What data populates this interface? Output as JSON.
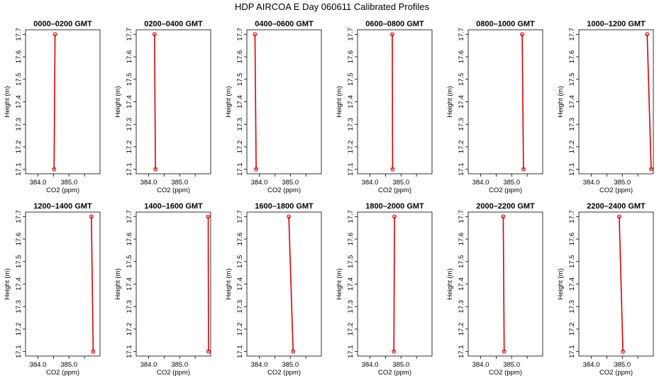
{
  "figure": {
    "title": "HDP  AIRCOA E  Day 060611  Calibrated Profiles",
    "line_color": "#dd0000",
    "point_color": "#dd0000",
    "axis_color": "#000000"
  },
  "chart_data": [
    {
      "type": "line",
      "title": "0000–0200 GMT",
      "xlabel": "CO2 (ppm)",
      "ylabel": "Height (m)",
      "xlim": [
        383.6,
        386.0
      ],
      "ylim": [
        17.08,
        17.72
      ],
      "xticks": [
        "384.0",
        "385.0"
      ],
      "yticks": [
        "17.1",
        "17.2",
        "17.3",
        "17.4",
        "17.5",
        "17.6",
        "17.7"
      ],
      "series": [
        {
          "x": [
            384.52,
            384.55
          ],
          "y": [
            17.1,
            17.7
          ]
        }
      ]
    },
    {
      "type": "line",
      "title": "0200–0400 GMT",
      "xlabel": "CO2 (ppm)",
      "ylabel": "Height (m)",
      "xlim": [
        383.6,
        386.0
      ],
      "ylim": [
        17.08,
        17.72
      ],
      "xticks": [
        "384.0",
        "385.0"
      ],
      "yticks": [
        "17.1",
        "17.2",
        "17.3",
        "17.4",
        "17.5",
        "17.6",
        "17.7"
      ],
      "series": [
        {
          "x": [
            384.22,
            384.19
          ],
          "y": [
            17.1,
            17.7
          ]
        }
      ]
    },
    {
      "type": "line",
      "title": "0400–0600 GMT",
      "xlabel": "CO2 (ppm)",
      "ylabel": "Height (m)",
      "xlim": [
        383.6,
        386.0
      ],
      "ylim": [
        17.08,
        17.72
      ],
      "xticks": [
        "384.0",
        "385.0"
      ],
      "yticks": [
        "17.1",
        "17.2",
        "17.3",
        "17.4",
        "17.5",
        "17.6",
        "17.7"
      ],
      "series": [
        {
          "x": [
            383.9,
            383.86
          ],
          "y": [
            17.1,
            17.7
          ]
        }
      ]
    },
    {
      "type": "line",
      "title": "0600–0800 GMT",
      "xlabel": "CO2 (ppm)",
      "ylabel": "Height (m)",
      "xlim": [
        383.6,
        386.0
      ],
      "ylim": [
        17.08,
        17.72
      ],
      "xticks": [
        "384.0",
        "385.0"
      ],
      "yticks": [
        "17.1",
        "17.2",
        "17.3",
        "17.4",
        "17.5",
        "17.6",
        "17.7"
      ],
      "series": [
        {
          "x": [
            384.73,
            384.72
          ],
          "y": [
            17.1,
            17.7
          ]
        }
      ]
    },
    {
      "type": "line",
      "title": "0800–1000 GMT",
      "xlabel": "CO2 (ppm)",
      "ylabel": "Height (m)",
      "xlim": [
        383.6,
        386.0
      ],
      "ylim": [
        17.08,
        17.72
      ],
      "xticks": [
        "384.0",
        "385.0"
      ],
      "yticks": [
        "17.1",
        "17.2",
        "17.3",
        "17.4",
        "17.5",
        "17.6",
        "17.7"
      ],
      "series": [
        {
          "x": [
            385.38,
            385.34
          ],
          "y": [
            17.1,
            17.7
          ]
        }
      ]
    },
    {
      "type": "line",
      "title": "1000–1200 GMT",
      "xlabel": "CO2 (ppm)",
      "ylabel": "Height (m)",
      "xlim": [
        383.6,
        386.0
      ],
      "ylim": [
        17.08,
        17.72
      ],
      "xticks": [
        "384.0",
        "385.0"
      ],
      "yticks": [
        "17.1",
        "17.2",
        "17.3",
        "17.4",
        "17.5",
        "17.6",
        "17.7"
      ],
      "series": [
        {
          "x": [
            385.93,
            385.8
          ],
          "y": [
            17.1,
            17.7
          ]
        }
      ]
    },
    {
      "type": "line",
      "title": "1200–1400 GMT",
      "xlabel": "CO2 (ppm)",
      "ylabel": "Height (m)",
      "xlim": [
        383.6,
        386.0
      ],
      "ylim": [
        17.08,
        17.72
      ],
      "xticks": [
        "384.0",
        "385.0"
      ],
      "yticks": [
        "17.1",
        "17.2",
        "17.3",
        "17.4",
        "17.5",
        "17.6",
        "17.7"
      ],
      "series": [
        {
          "x": [
            385.78,
            385.72
          ],
          "y": [
            17.1,
            17.7
          ]
        }
      ]
    },
    {
      "type": "line",
      "title": "1400–1600 GMT",
      "xlabel": "CO2 (ppm)",
      "ylabel": "Height (m)",
      "xlim": [
        383.6,
        386.0
      ],
      "ylim": [
        17.08,
        17.72
      ],
      "xticks": [
        "384.0",
        "385.0"
      ],
      "yticks": [
        "17.1",
        "17.2",
        "17.3",
        "17.4",
        "17.5",
        "17.6",
        "17.7"
      ],
      "series": [
        {
          "x": [
            385.93,
            385.92
          ],
          "y": [
            17.1,
            17.7
          ]
        }
      ]
    },
    {
      "type": "line",
      "title": "1600–1800 GMT",
      "xlabel": "CO2 (ppm)",
      "ylabel": "Height (m)",
      "xlim": [
        383.6,
        386.0
      ],
      "ylim": [
        17.08,
        17.72
      ],
      "xticks": [
        "384.0",
        "385.0"
      ],
      "yticks": [
        "17.1",
        "17.2",
        "17.3",
        "17.4",
        "17.5",
        "17.6",
        "17.7"
      ],
      "series": [
        {
          "x": [
            385.09,
            384.95
          ],
          "y": [
            17.1,
            17.7
          ]
        }
      ]
    },
    {
      "type": "line",
      "title": "1800–2000 GMT",
      "xlabel": "CO2 (ppm)",
      "ylabel": "Height (m)",
      "xlim": [
        383.6,
        386.0
      ],
      "ylim": [
        17.08,
        17.72
      ],
      "xticks": [
        "384.0",
        "385.0"
      ],
      "yticks": [
        "17.1",
        "17.2",
        "17.3",
        "17.4",
        "17.5",
        "17.6",
        "17.7"
      ],
      "series": [
        {
          "x": [
            384.77,
            384.79
          ],
          "y": [
            17.1,
            17.7
          ]
        }
      ]
    },
    {
      "type": "line",
      "title": "2000–2200 GMT",
      "xlabel": "CO2 (ppm)",
      "ylabel": "Height (m)",
      "xlim": [
        383.6,
        386.0
      ],
      "ylim": [
        17.08,
        17.72
      ],
      "xticks": [
        "384.0",
        "385.0"
      ],
      "yticks": [
        "17.1",
        "17.2",
        "17.3",
        "17.4",
        "17.5",
        "17.6",
        "17.7"
      ],
      "series": [
        {
          "x": [
            384.76,
            384.73
          ],
          "y": [
            17.1,
            17.7
          ]
        }
      ]
    },
    {
      "type": "line",
      "title": "2200–2400 GMT",
      "xlabel": "CO2 (ppm)",
      "ylabel": "Height (m)",
      "xlim": [
        383.6,
        386.0
      ],
      "ylim": [
        17.08,
        17.72
      ],
      "xticks": [
        "384.0",
        "385.0"
      ],
      "yticks": [
        "17.1",
        "17.2",
        "17.3",
        "17.4",
        "17.5",
        "17.6",
        "17.7"
      ],
      "series": [
        {
          "x": [
            385.02,
            384.9
          ],
          "y": [
            17.1,
            17.7
          ]
        }
      ]
    }
  ]
}
